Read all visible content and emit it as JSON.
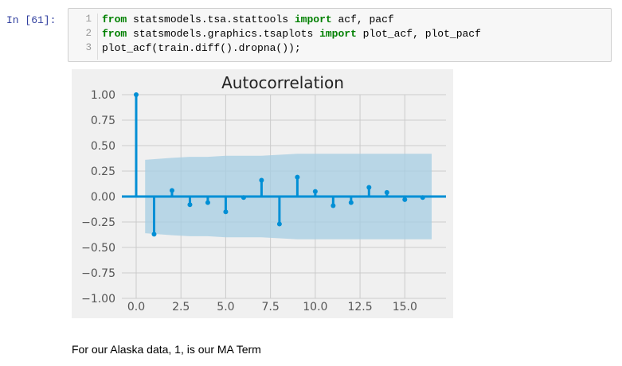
{
  "cell": {
    "prompt": "In [61]:",
    "lines": [
      {
        "no": "1",
        "parts": [
          {
            "text": "from",
            "kw": true
          },
          {
            "text": " statsmodels.tsa.stattools ",
            "kw": false
          },
          {
            "text": "import",
            "kw": true
          },
          {
            "text": " acf, pacf",
            "kw": false
          }
        ]
      },
      {
        "no": "2",
        "parts": [
          {
            "text": "from",
            "kw": true
          },
          {
            "text": " statsmodels.graphics.tsaplots ",
            "kw": false
          },
          {
            "text": "import",
            "kw": true
          },
          {
            "text": " plot_acf, plot_pacf",
            "kw": false
          }
        ]
      },
      {
        "no": "3",
        "parts": [
          {
            "text": "plot_acf(train.diff().dropna());",
            "kw": false
          }
        ]
      }
    ]
  },
  "chart_data": {
    "type": "stem",
    "title": "Autocorrelation",
    "xlabel": "",
    "ylabel": "",
    "xlim": [
      -0.8,
      17.3
    ],
    "ylim": [
      -1.0,
      1.0
    ],
    "x_ticks": [
      "0.0",
      "2.5",
      "5.0",
      "7.5",
      "10.0",
      "12.5",
      "15.0"
    ],
    "x_tick_values": [
      0,
      2.5,
      5,
      7.5,
      10,
      12.5,
      15
    ],
    "y_ticks": [
      "1.00",
      "0.75",
      "0.50",
      "0.25",
      "0.00",
      "−0.25",
      "−0.50",
      "−0.75",
      "−1.00"
    ],
    "y_tick_values": [
      1.0,
      0.75,
      0.5,
      0.25,
      0.0,
      -0.25,
      -0.5,
      -0.75,
      -1.0
    ],
    "grid": true,
    "style": "fivethirtyeight",
    "colors": {
      "stem": "#008fd5",
      "band": "#a6cee3",
      "background": "#f0f0f0",
      "grid": "#cbcbcb"
    },
    "lags": [
      0,
      1,
      2,
      3,
      4,
      5,
      6,
      7,
      8,
      9,
      10,
      11,
      12,
      13,
      14,
      15,
      16
    ],
    "values": [
      1.0,
      -0.37,
      0.06,
      -0.08,
      -0.06,
      -0.15,
      -0.01,
      0.16,
      -0.27,
      0.19,
      0.05,
      -0.09,
      -0.06,
      0.09,
      0.04,
      -0.03,
      -0.01
    ],
    "confidence_upper": [
      0.33,
      0.36,
      0.38,
      0.39,
      0.39,
      0.4,
      0.4,
      0.4,
      0.41,
      0.42,
      0.42,
      0.42,
      0.42,
      0.42,
      0.42,
      0.42,
      0.42
    ],
    "confidence_lower": [
      -0.33,
      -0.36,
      -0.38,
      -0.39,
      -0.39,
      -0.4,
      -0.4,
      -0.4,
      -0.41,
      -0.42,
      -0.42,
      -0.42,
      -0.42,
      -0.42,
      -0.42,
      -0.42,
      -0.42
    ]
  },
  "markdown": {
    "text": "For our Alaska data, 1, is our MA Term"
  }
}
